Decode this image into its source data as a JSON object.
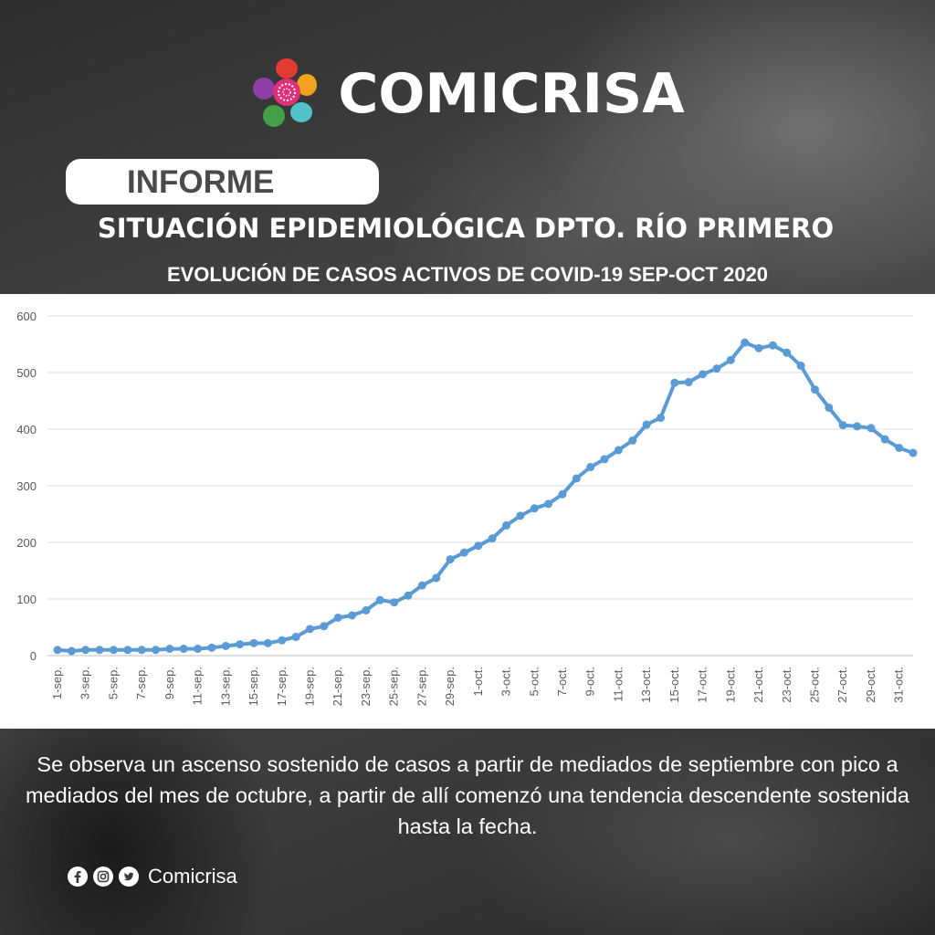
{
  "brand": {
    "name": "COMICRISA"
  },
  "header": {
    "pill_label": "INFORME",
    "title": "SITUACIÓN EPIDEMIOLÓGICA DPTO. RÍO PRIMERO",
    "subtitle": "EVOLUCIÓN DE CASOS ACTIVOS DE COVID-19 SEP-OCT 2020"
  },
  "chart_data": {
    "type": "line",
    "title": "",
    "xlabel": "",
    "ylabel": "",
    "ylim": [
      0,
      600
    ],
    "yticks": [
      0,
      100,
      200,
      300,
      400,
      500,
      600
    ],
    "grid": true,
    "line_color": "#5b9bd5",
    "categories": [
      "1-sep.",
      "2-sep.",
      "3-sep.",
      "4-sep.",
      "5-sep.",
      "6-sep.",
      "7-sep.",
      "8-sep.",
      "9-sep.",
      "10-sep.",
      "11-sep.",
      "12-sep.",
      "13-sep.",
      "14-sep.",
      "15-sep.",
      "16-sep.",
      "17-sep.",
      "18-sep.",
      "19-sep.",
      "20-sep.",
      "21-sep.",
      "22-sep.",
      "23-sep.",
      "24-sep.",
      "25-sep.",
      "26-sep.",
      "27-sep.",
      "28-sep.",
      "29-sep.",
      "30-sep.",
      "1-oct.",
      "2-oct.",
      "3-oct.",
      "4-oct.",
      "5-oct.",
      "6-oct.",
      "7-oct.",
      "8-oct.",
      "9-oct.",
      "10-oct.",
      "11-oct.",
      "12-oct.",
      "13-oct.",
      "14-oct.",
      "15-oct.",
      "16-oct.",
      "17-oct.",
      "18-oct.",
      "19-oct.",
      "20-oct.",
      "21-oct.",
      "22-oct.",
      "23-oct.",
      "24-oct.",
      "25-oct.",
      "26-oct.",
      "27-oct.",
      "28-oct.",
      "29-oct.",
      "30-oct.",
      "31-oct.",
      "1-nov."
    ],
    "tick_labels_shown": [
      "1-sep.",
      "3-sep.",
      "5-sep.",
      "7-sep.",
      "9-sep.",
      "11-sep.",
      "13-sep.",
      "15-sep.",
      "17-sep.",
      "19-sep.",
      "21-sep.",
      "23-sep.",
      "25-sep.",
      "27-sep.",
      "29-sep.",
      "1-oct.",
      "3-oct.",
      "5-oct.",
      "7-oct.",
      "9-oct.",
      "11-oct.",
      "13-oct.",
      "15-oct.",
      "17-oct.",
      "19-oct.",
      "21-oct.",
      "23-oct.",
      "25-oct.",
      "27-oct.",
      "29-oct.",
      "31-oct."
    ],
    "values": [
      10,
      8,
      10,
      10,
      10,
      10,
      10,
      10,
      12,
      12,
      12,
      14,
      17,
      20,
      22,
      22,
      27,
      33,
      47,
      52,
      67,
      71,
      80,
      98,
      94,
      106,
      124,
      137,
      170,
      182,
      194,
      207,
      230,
      247,
      260,
      268,
      285,
      313,
      333,
      347,
      363,
      380,
      408,
      420,
      482,
      483,
      497,
      507,
      522,
      553,
      543,
      548,
      535,
      512,
      470,
      438,
      407,
      405,
      402,
      382,
      367,
      358
    ]
  },
  "description": "Se observa un ascenso sostenido de casos a partir de mediados de septiembre con pico a mediados del mes de octubre, a partir de allí comenzó una tendencia descendente sostenida hasta la fecha.",
  "social": {
    "icons": [
      "facebook-icon",
      "instagram-icon",
      "twitter-icon"
    ],
    "handle": "Comicrisa"
  }
}
